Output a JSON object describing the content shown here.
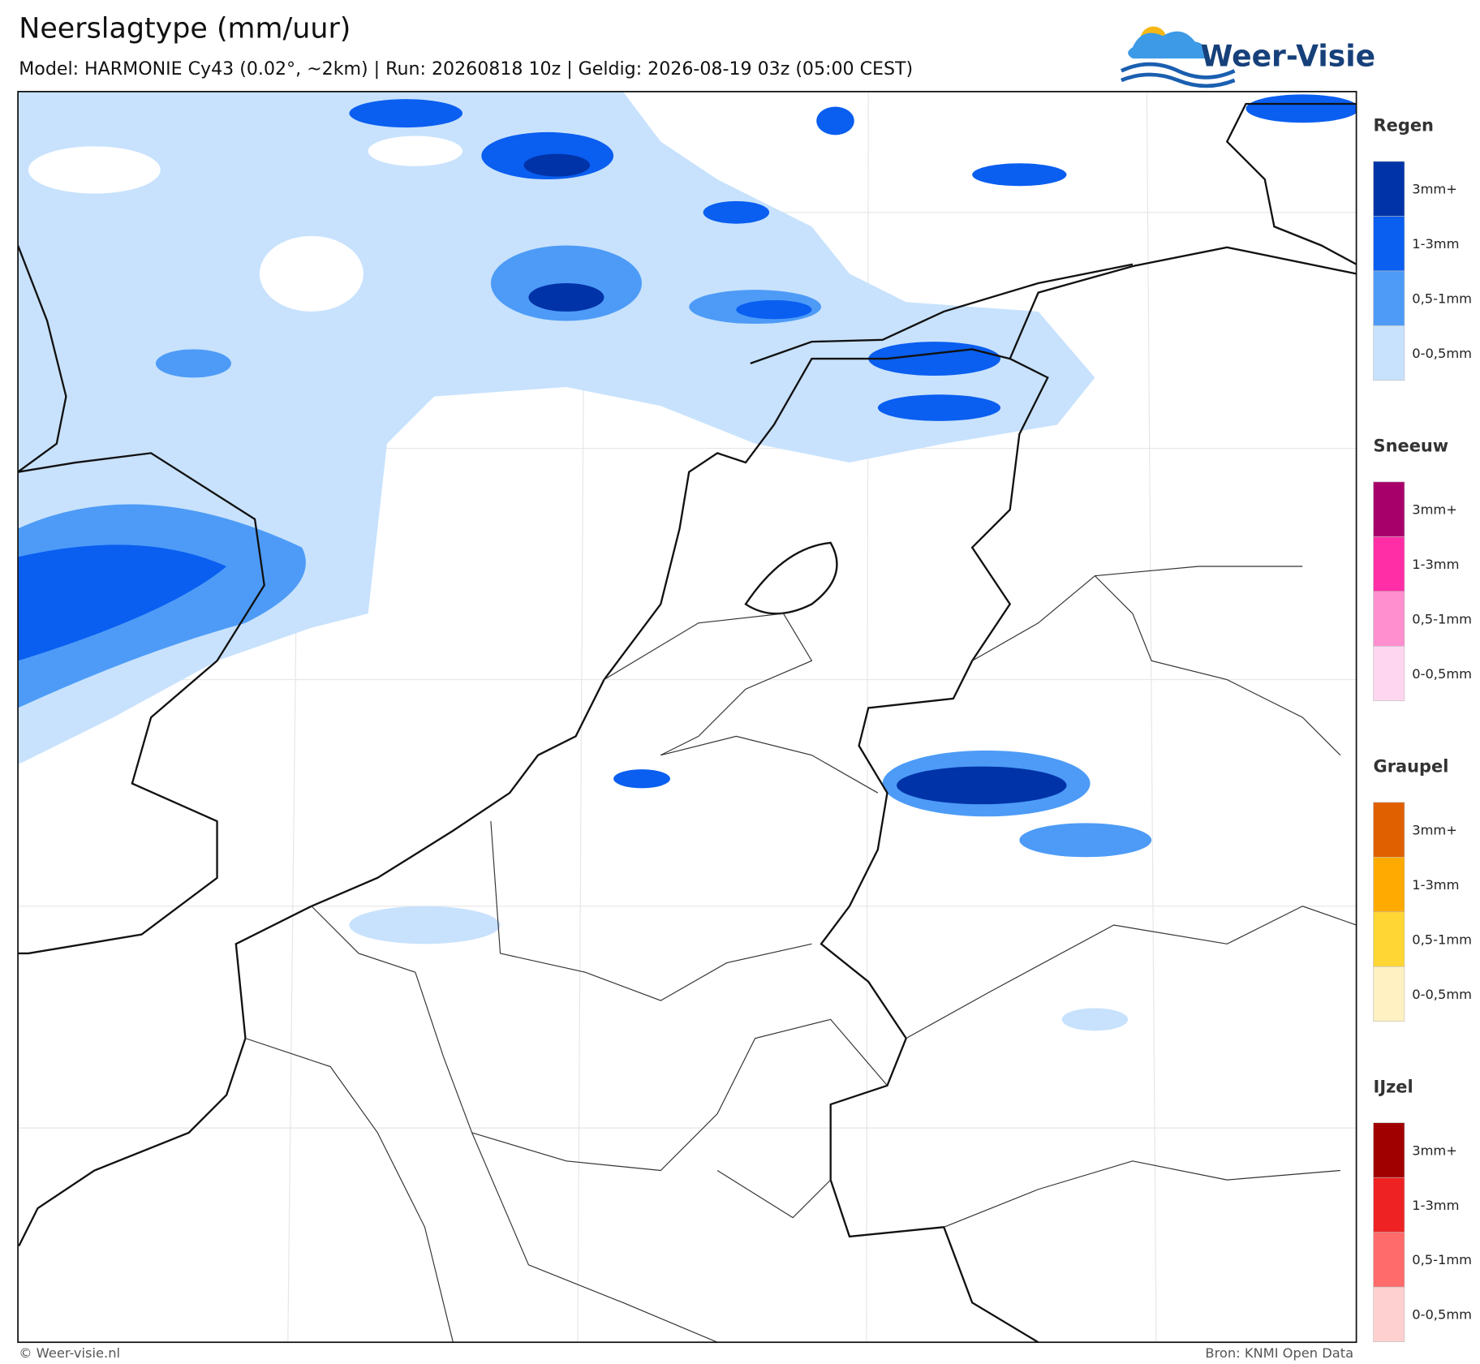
{
  "header": {
    "title": "Neerslagtype (mm/uur)",
    "subtitle": "Model: HARMONIE Cy43 (0.02°, ~2km)  |  Run: 20260818 10z  |  Geldig: 2026-08-19 03z (05:00 CEST)"
  },
  "logo": {
    "text": "Weer-Visie"
  },
  "legend": {
    "groups": [
      {
        "title": "Regen",
        "items": [
          {
            "label": "3mm+",
            "color": "#0033a8"
          },
          {
            "label": "1-3mm",
            "color": "#0a5ef0"
          },
          {
            "label": "0,5-1mm",
            "color": "#4d9bf7"
          },
          {
            "label": "0-0,5mm",
            "color": "#c8e2fd"
          }
        ]
      },
      {
        "title": "Sneeuw",
        "items": [
          {
            "label": "3mm+",
            "color": "#a8006a"
          },
          {
            "label": "1-3mm",
            "color": "#ff2ea6"
          },
          {
            "label": "0,5-1mm",
            "color": "#ff8fcf"
          },
          {
            "label": "0-0,5mm",
            "color": "#ffd6ef"
          }
        ]
      },
      {
        "title": "Graupel",
        "items": [
          {
            "label": "3mm+",
            "color": "#e06000"
          },
          {
            "label": "1-3mm",
            "color": "#ffaa00"
          },
          {
            "label": "0,5-1mm",
            "color": "#ffd633"
          },
          {
            "label": "0-0,5mm",
            "color": "#fff1c2"
          }
        ]
      },
      {
        "title": "IJzel",
        "items": [
          {
            "label": "3mm+",
            "color": "#a00000"
          },
          {
            "label": "1-3mm",
            "color": "#ee2222"
          },
          {
            "label": "0,5-1mm",
            "color": "#ff6a6a"
          },
          {
            "label": "0-0,5mm",
            "color": "#ffd0d0"
          }
        ]
      }
    ]
  },
  "footer": {
    "left": "© Weer-visie.nl",
    "right": "Bron: KNMI Open Data"
  }
}
